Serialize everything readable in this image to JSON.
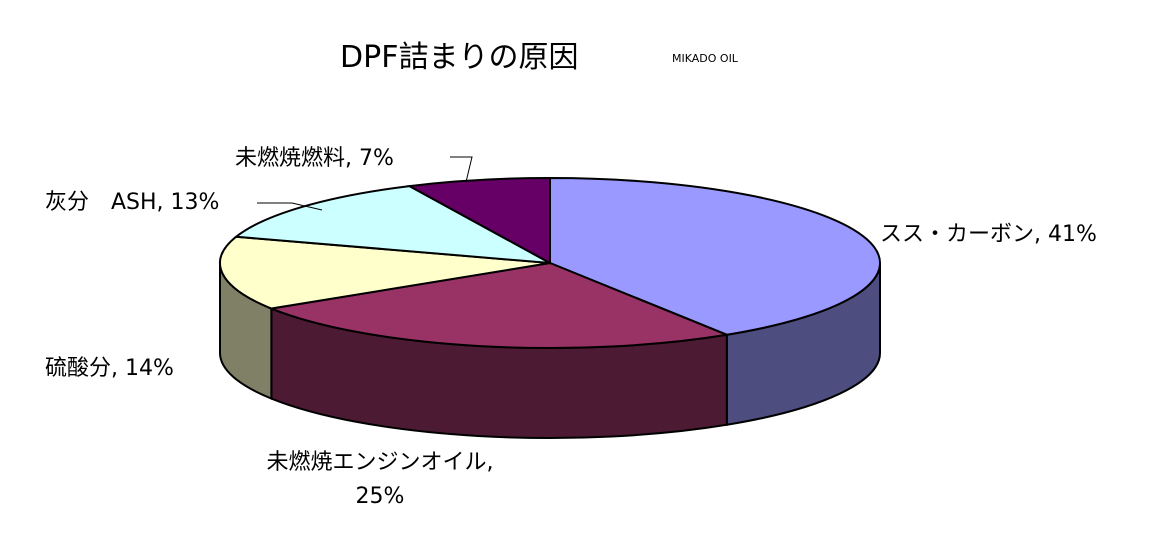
{
  "chart_data": {
    "type": "pie",
    "title": "DPF詰まりの原因",
    "subtitle": "MIKADO OIL",
    "values": [
      41,
      25,
      14,
      13,
      7
    ],
    "value_labels": [
      "スス・カーボン, 41%",
      "未燃焼エンジンオイル, 25%",
      "硫酸分, 14%",
      "灰分　ASH, 13%",
      "未燃焼燃料, 7%"
    ],
    "colors": [
      "#9999ff",
      "#993366",
      "#ffffcc",
      "#ccffff",
      "#660066"
    ]
  }
}
